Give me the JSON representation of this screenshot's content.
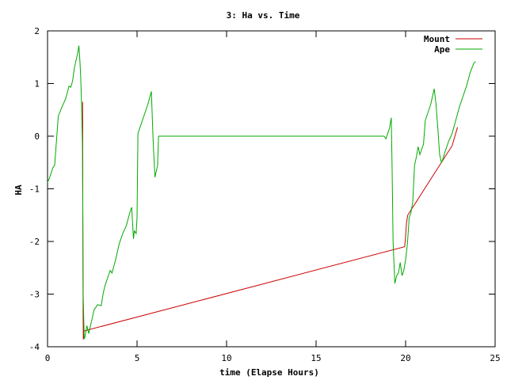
{
  "chart_data": {
    "type": "line",
    "title": "3: Ha vs. Time",
    "xlabel": "time (Elapse Hours)",
    "ylabel": "HA",
    "xlim": [
      0,
      25
    ],
    "ylim": [
      -4,
      2
    ],
    "xticks": [
      0,
      5,
      10,
      15,
      20,
      25
    ],
    "yticks": [
      -4,
      -3,
      -2,
      -1,
      0,
      1,
      2
    ],
    "grid": false,
    "legend_position": "top-right",
    "series": [
      {
        "name": "Mount",
        "color": "#cc0000",
        "x": [
          1.95,
          1.96,
          1.97,
          1.99,
          2.0,
          2.02,
          2.04,
          19.95,
          20.0,
          20.05,
          20.12,
          22.6,
          22.9
        ],
        "y": [
          -0.2,
          0.65,
          -1.4,
          -3.5,
          -3.86,
          -3.82,
          -3.7,
          -2.1,
          -1.9,
          -1.65,
          -1.5,
          -0.18,
          0.17
        ]
      },
      {
        "name": "Ape",
        "color": "#00aa00",
        "x": [
          0,
          0.1,
          0.3,
          0.4,
          0.6,
          0.8,
          1.0,
          1.1,
          1.2,
          1.3,
          1.4,
          1.5,
          1.6,
          1.7,
          1.75,
          1.8,
          1.85,
          1.9,
          1.95,
          1.97,
          1.99,
          2.05,
          2.1,
          2.2,
          2.3,
          2.4,
          2.5,
          2.6,
          2.8,
          3.0,
          3.1,
          3.2,
          3.3,
          3.5,
          3.6,
          3.8,
          4.0,
          4.2,
          4.4,
          4.6,
          4.7,
          4.8,
          4.85,
          4.95,
          5.0,
          5.05,
          5.2,
          5.4,
          5.6,
          5.8,
          5.9,
          6.0,
          6.05,
          6.15,
          6.2,
          6.3,
          8.0,
          12.0,
          16.0,
          18.8,
          18.9,
          19.0,
          19.1,
          19.2,
          19.25,
          19.3,
          19.4,
          19.5,
          19.6,
          19.7,
          19.8,
          19.9,
          20.0,
          20.1,
          20.2,
          20.3,
          20.4,
          20.5,
          20.6,
          20.7,
          20.8,
          20.9,
          21.0,
          21.1,
          21.2,
          21.4,
          21.5,
          21.6,
          21.7,
          21.8,
          21.9,
          22.0,
          22.1,
          22.2,
          22.4,
          22.6,
          22.8,
          23.0,
          23.2,
          23.4,
          23.6,
          23.8,
          23.9
        ],
        "y": [
          -0.88,
          -0.8,
          -0.6,
          -0.55,
          0.38,
          0.55,
          0.7,
          0.82,
          0.95,
          0.93,
          1.05,
          1.3,
          1.45,
          1.6,
          1.72,
          1.48,
          1.15,
          0.62,
          -0.18,
          -1.4,
          -3.0,
          -3.85,
          -3.8,
          -3.6,
          -3.75,
          -3.6,
          -3.45,
          -3.3,
          -3.2,
          -3.22,
          -3.0,
          -2.85,
          -2.75,
          -2.55,
          -2.6,
          -2.35,
          -2.05,
          -1.85,
          -1.7,
          -1.45,
          -1.35,
          -1.95,
          -1.8,
          -1.85,
          -1.55,
          0.05,
          0.2,
          0.4,
          0.6,
          0.85,
          -0.1,
          -0.78,
          -0.7,
          -0.55,
          0.0,
          0.0,
          0.0,
          0.0,
          0.0,
          0.0,
          -0.05,
          0.05,
          0.15,
          0.35,
          -0.7,
          -2.0,
          -2.8,
          -2.65,
          -2.6,
          -2.4,
          -2.65,
          -2.55,
          -2.35,
          -2.05,
          -1.55,
          -1.45,
          -1.25,
          -0.55,
          -0.4,
          -0.2,
          -0.35,
          -0.25,
          -0.15,
          0.3,
          0.4,
          0.6,
          0.75,
          0.9,
          0.6,
          0.15,
          -0.35,
          -0.5,
          -0.42,
          -0.3,
          -0.1,
          0.05,
          0.3,
          0.55,
          0.75,
          0.95,
          1.2,
          1.38,
          1.42
        ]
      }
    ]
  }
}
